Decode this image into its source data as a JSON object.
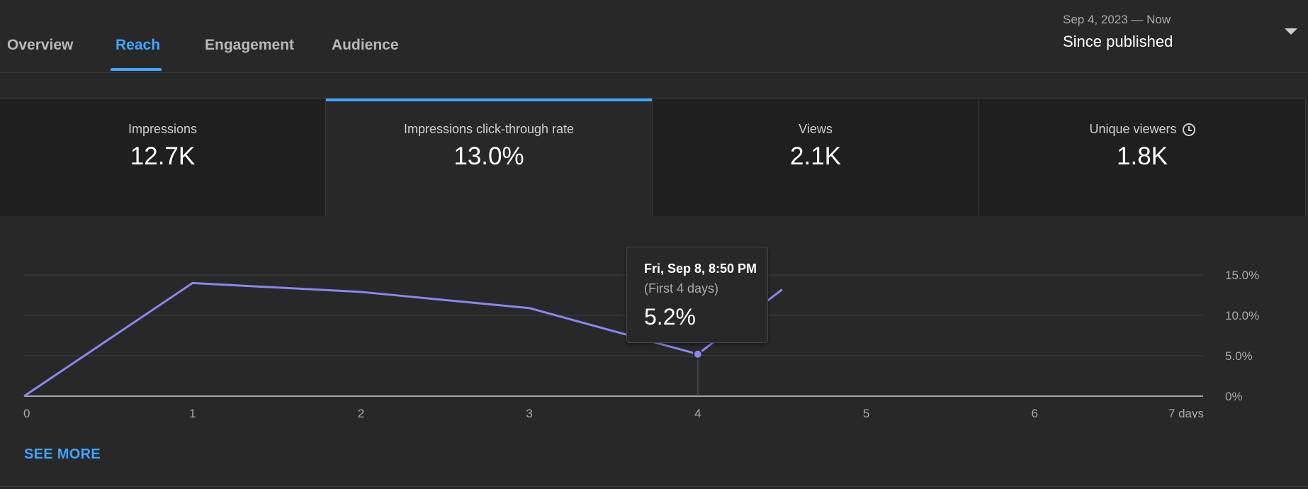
{
  "tabs": [
    {
      "label": "Overview",
      "active": false
    },
    {
      "label": "Reach",
      "active": true
    },
    {
      "label": "Engagement",
      "active": false
    },
    {
      "label": "Audience",
      "active": false
    }
  ],
  "date_range": {
    "range_text": "Sep 4, 2023 — Now",
    "selected": "Since published",
    "icon": "chevron-down-icon"
  },
  "metrics": [
    {
      "label": "Impressions",
      "value": "12.7K",
      "selected": false
    },
    {
      "label": "Impressions click-through rate",
      "value": "13.0%",
      "selected": true
    },
    {
      "label": "Views",
      "value": "2.1K",
      "selected": false
    },
    {
      "label": "Unique viewers",
      "value": "1.8K",
      "selected": false,
      "icon": "clock-icon"
    }
  ],
  "tooltip": {
    "date": "Fri, Sep 8, 8:50 PM",
    "period": "(First 4 days)",
    "value": "5.2%"
  },
  "see_more_label": "SEE MORE",
  "colors": {
    "accent": "#3ea6ff",
    "line": "#8b86f0",
    "background": "#282828",
    "card_background": "#1f1f1f"
  },
  "chart_data": {
    "type": "line",
    "xlabel": "",
    "ylabel": "",
    "x_ticks": [
      "0",
      "1",
      "2",
      "3",
      "4",
      "5",
      "6",
      "7 days"
    ],
    "y_ticks": [
      "0%",
      "5.0%",
      "10.0%",
      "15.0%"
    ],
    "xlim": [
      0,
      7
    ],
    "ylim": [
      0,
      15
    ],
    "grid": true,
    "series": [
      {
        "x": [
          0,
          1,
          2,
          3,
          4,
          4.5
        ],
        "y": [
          0,
          14.0,
          12.9,
          10.9,
          5.2,
          13.2
        ]
      }
    ],
    "highlight": {
      "x": 4,
      "y": 5.2
    }
  }
}
